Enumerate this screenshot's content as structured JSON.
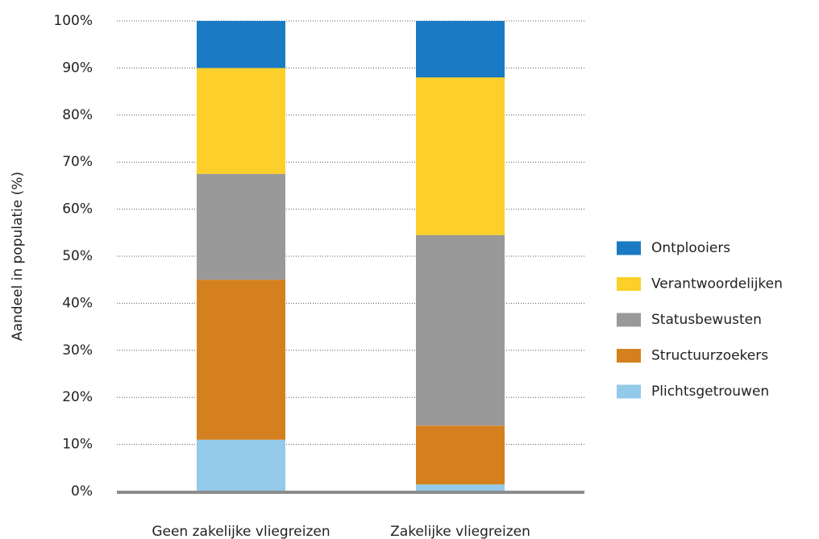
{
  "chart_data": {
    "type": "stacked_bar",
    "y_label": "Aandeel in populatie (%)",
    "categories": [
      "Geen zakelijke vliegreizen",
      "Zakelijke vliegreizen"
    ],
    "series": [
      {
        "name": "Plichtsgetrouwen",
        "color": "#93c9e9",
        "values": [
          11,
          1.5
        ]
      },
      {
        "name": "Structuurzoekers",
        "color": "#d5801e",
        "values": [
          34,
          12.5
        ]
      },
      {
        "name": "Statusbewusten",
        "color": "#999999",
        "values": [
          22.5,
          40.5
        ]
      },
      {
        "name": "Verantwoordelijken",
        "color": "#fccf2a",
        "values": [
          22.5,
          33.5
        ]
      },
      {
        "name": "Ontplooiers",
        "color": "#1a7ac4",
        "values": [
          10,
          12
        ]
      }
    ],
    "ylim": [
      0,
      100
    ],
    "yticks": [
      {
        "value": 0,
        "label": "0%"
      },
      {
        "value": 10,
        "label": "10%"
      },
      {
        "value": 20,
        "label": "20%"
      },
      {
        "value": 30,
        "label": "30%"
      },
      {
        "value": 40,
        "label": "40%"
      },
      {
        "value": 50,
        "label": "50%"
      },
      {
        "value": 60,
        "label": "60%"
      },
      {
        "value": 70,
        "label": "70%"
      },
      {
        "value": 80,
        "label": "80%"
      },
      {
        "value": 90,
        "label": "90%"
      },
      {
        "value": 100,
        "label": "100%"
      }
    ],
    "grid": true,
    "legend": "right"
  }
}
